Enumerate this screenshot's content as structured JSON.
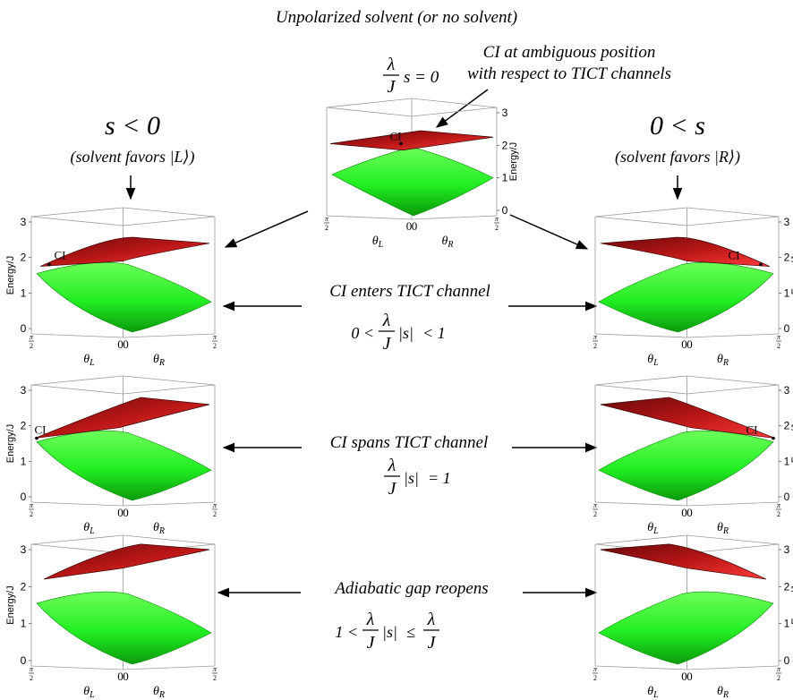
{
  "title": "Unpolarized solvent (or no solvent)",
  "center_annotation": {
    "equation": "λ/J s = 0",
    "lambda": "λ",
    "J": "J",
    "s_eq": "s = 0",
    "note_line1": "CI at ambiguous position",
    "note_line2": "with respect to TICT channels"
  },
  "left_column": {
    "heading": "s < 0",
    "subheading": "(solvent favors |L⟩)"
  },
  "right_column": {
    "heading": "0 < s",
    "subheading": "(solvent favors |R⟩)"
  },
  "rows": [
    {
      "label": "CI enters TICT channel",
      "condition": "0 < λ/J |s| < 1",
      "cond_left": "0 <",
      "cond_mid": "|s|",
      "cond_right": "< 1"
    },
    {
      "label": "CI spans TICT channel",
      "condition": "λ/J |s| = 1",
      "cond_left": "",
      "cond_mid": "|s|",
      "cond_right": "= 1"
    },
    {
      "label": "Adiabatic gap reopens",
      "condition": "1 < λ/J |s| ≤ λ/J",
      "cond_left": "1 <",
      "cond_mid": "|s|",
      "cond_right": "≤"
    }
  ],
  "plot_axes": {
    "z_label": "Energy/J",
    "z_ticks": [
      "0",
      "1",
      "2",
      "3"
    ],
    "theta_L": "θ",
    "theta_L_sub": "L",
    "theta_R": "θ",
    "theta_R_sub": "R",
    "tick_pi": "π",
    "tick_2": "2",
    "tick_zero": "0"
  },
  "ci_label": "CI",
  "colors": {
    "upper_surface": "#cc1f1f",
    "upper_surface_dark": "#5a0606",
    "lower_surface": "#22ff22",
    "lower_surface_dark": "#0a9a0a",
    "box": "#9a9a9a"
  }
}
